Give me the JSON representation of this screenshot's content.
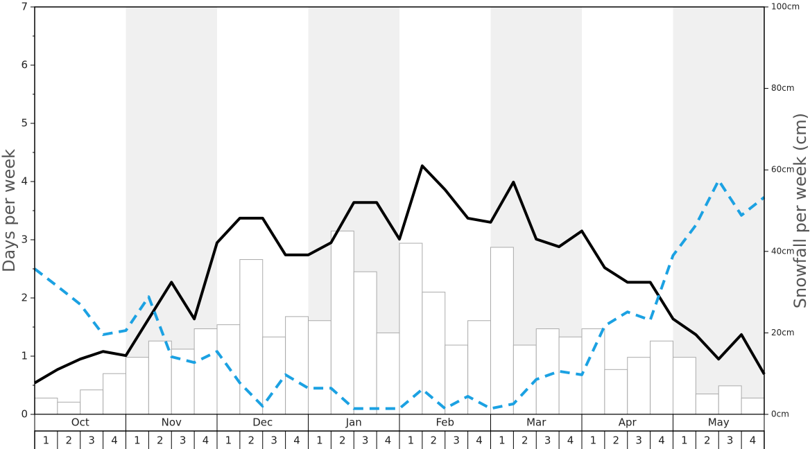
{
  "chart_data": {
    "type": "bar",
    "y_axis_label": "Days per week",
    "y2_axis_label": "Snowfall per week (cm)",
    "months": [
      "Oct",
      "Nov",
      "Dec",
      "Jan",
      "Feb",
      "Mar",
      "Apr",
      "May"
    ],
    "categories": [
      "1",
      "2",
      "3",
      "4",
      "1",
      "2",
      "3",
      "4",
      "1",
      "2",
      "3",
      "4",
      "1",
      "2",
      "3",
      "4",
      "1",
      "2",
      "3",
      "4",
      "1",
      "2",
      "3",
      "4",
      "1",
      "2",
      "3",
      "4",
      "1",
      "2",
      "3",
      "4"
    ],
    "bar_color": "#ffffff",
    "values": [
      4,
      3,
      6,
      10,
      14,
      18,
      16,
      21,
      22,
      38,
      19,
      24,
      23,
      45,
      35,
      20,
      42,
      30,
      17,
      23,
      41,
      17,
      21,
      19,
      21,
      11,
      14,
      18,
      14,
      5,
      7,
      4
    ],
    "x": [
      0,
      1,
      2,
      3,
      4,
      5,
      6,
      7,
      8,
      9,
      10,
      11,
      12,
      13,
      14,
      15,
      16,
      17,
      18,
      19,
      20,
      21,
      22,
      23,
      24,
      25,
      26,
      27,
      28,
      29,
      30,
      31,
      32
    ],
    "xlim": [
      0,
      32
    ],
    "series": [
      {
        "color": "#000000",
        "dashed": false,
        "values": [
          0.54,
          0.77,
          0.95,
          1.08,
          1.01,
          1.64,
          2.27,
          1.64,
          2.95,
          3.37,
          3.37,
          2.74,
          2.74,
          2.95,
          3.64,
          3.64,
          3.01,
          4.27,
          3.86,
          3.37,
          3.3,
          3.99,
          3.01,
          2.88,
          3.15,
          2.52,
          2.27,
          2.27,
          1.64,
          1.37,
          0.95,
          1.37,
          0.69
        ]
      },
      {
        "color": "#1ba1e2",
        "dashed": true,
        "values": [
          2.5,
          2.2,
          1.89,
          1.37,
          1.44,
          2.02,
          0.99,
          0.89,
          1.08,
          0.54,
          0.14,
          0.68,
          0.45,
          0.45,
          0.1,
          0.1,
          0.1,
          0.43,
          0.1,
          0.31,
          0.1,
          0.18,
          0.6,
          0.74,
          0.68,
          1.52,
          1.76,
          1.62,
          2.73,
          3.25,
          4.02,
          3.42,
          3.73
        ]
      }
    ],
    "ylim": [
      0,
      7
    ],
    "yticks": [
      0,
      1,
      2,
      3,
      4,
      5,
      6,
      7
    ],
    "y2lim": [
      0,
      100
    ],
    "y2ticks": [
      {
        "value": 0,
        "label": "0cm"
      },
      {
        "value": 20,
        "label": "20cm"
      },
      {
        "value": 40,
        "label": "40cm"
      },
      {
        "value": 60,
        "label": "60cm"
      },
      {
        "value": 80,
        "label": "80cm"
      },
      {
        "value": 100,
        "label": "100cm"
      }
    ]
  }
}
